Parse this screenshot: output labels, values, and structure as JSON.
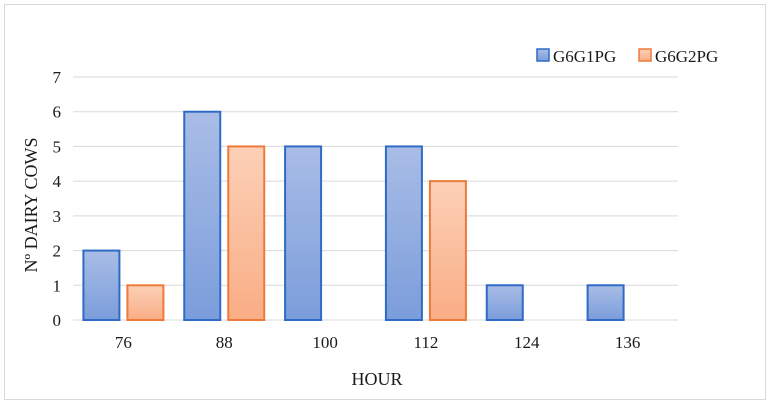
{
  "chart_data": {
    "type": "bar",
    "title": "",
    "xlabel": "HOUR",
    "ylabel": "Nº DAIRY COWS",
    "categories": [
      "76",
      "88",
      "100",
      "112",
      "124",
      "136"
    ],
    "series": [
      {
        "name": "G6G1PG",
        "values": [
          2,
          6,
          5,
          5,
          1,
          1
        ],
        "color_top": "#a9bde6",
        "color_bottom": "#7b9ddb",
        "stroke": "#2f6bc4"
      },
      {
        "name": "G6G2PG",
        "values": [
          1,
          5,
          0,
          4,
          0,
          0
        ],
        "color_top": "#fcd0b7",
        "color_bottom": "#f9ad85",
        "stroke": "#ee7a3a"
      }
    ],
    "ylim": [
      0,
      7
    ],
    "yticks": [
      0,
      1,
      2,
      3,
      4,
      5,
      6,
      7
    ],
    "grid": true,
    "legend_position": "top-right"
  }
}
